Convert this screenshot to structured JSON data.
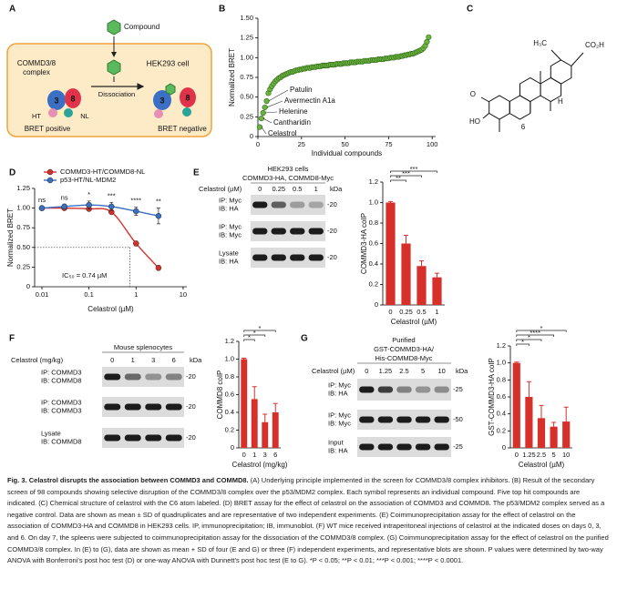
{
  "figure": {
    "panel_letters": [
      "A",
      "B",
      "C",
      "D",
      "E",
      "F",
      "G"
    ],
    "panel_a": {
      "compound": "Compound",
      "complex": [
        "COMMD3/8",
        "complex"
      ],
      "cell": "HEK293 cell",
      "dissociation": "Dissociation",
      "subunits": [
        "3",
        "8"
      ],
      "tags": [
        "HT",
        "NL"
      ],
      "left_result": "BRET positive",
      "right_result": "BRET negative"
    },
    "panel_c": {
      "labels": [
        "H₃C",
        "CO₂H",
        "H",
        "O",
        "HO",
        "6"
      ]
    },
    "blots": [
      {
        "header": [
          "HEK293 cells",
          "COMMD3-HA, COMMD8-Myc"
        ],
        "treatment": "Celastrol (µM)",
        "lanes": [
          "0",
          "0.25",
          "0.5",
          "1"
        ],
        "unit": "kDa",
        "rows": [
          {
            "label": [
              "IP: Myc",
              "IB: HA"
            ],
            "marker": "-20"
          },
          {
            "label": [
              "IP: Myc",
              "IB: Myc"
            ],
            "marker": "-20"
          },
          {
            "label": [
              "Lysate",
              "IB: HA"
            ],
            "marker": "-20"
          }
        ]
      },
      {
        "header": [
          "Mouse splenocytes"
        ],
        "treatment": "Celastrol (mg/kg)",
        "lanes": [
          "0",
          "1",
          "3",
          "6"
        ],
        "unit": "kDa",
        "rows": [
          {
            "label": [
              "IP: COMMD3",
              "IB: COMMD8"
            ],
            "marker": "-20"
          },
          {
            "label": [
              "IP: COMMD3",
              "IB: COMMD3"
            ],
            "marker": "-20"
          },
          {
            "label": [
              "Lysate",
              "IB: COMMD8"
            ],
            "marker": "-20"
          }
        ]
      },
      {
        "header": [
          "Purified",
          "GST-COMMD3-HA/",
          "His-COMMD8-Myc"
        ],
        "treatment": "Celastrol (µM)",
        "lanes": [
          "0",
          "1.25",
          "2.5",
          "5",
          "10"
        ],
        "unit": "kDa",
        "rows": [
          {
            "label": [
              "IP: Myc",
              "IB: HA"
            ],
            "marker": "-25"
          },
          {
            "label": [
              "IP: Myc",
              "IB: Myc"
            ],
            "marker": "-50"
          },
          {
            "label": [
              "Input",
              "IB: HA"
            ],
            "marker": "-25"
          }
        ]
      }
    ]
  },
  "chart_data": [
    {
      "type": "scatter",
      "x_label": "Individual compounds",
      "y_label": "Normalized BRET",
      "color": "#6db33f",
      "x": [
        1,
        2,
        3,
        4,
        5,
        6,
        7,
        8,
        9,
        10,
        11,
        12,
        13,
        14,
        15,
        16,
        17,
        18,
        19,
        20,
        21,
        22,
        23,
        24,
        25,
        26,
        27,
        28,
        29,
        30,
        31,
        32,
        33,
        34,
        35,
        36,
        37,
        38,
        39,
        40,
        41,
        42,
        43,
        44,
        45,
        46,
        47,
        48,
        49,
        50,
        51,
        52,
        53,
        54,
        55,
        56,
        57,
        58,
        59,
        60,
        61,
        62,
        63,
        64,
        65,
        66,
        67,
        68,
        69,
        70,
        71,
        72,
        73,
        74,
        75,
        76,
        77,
        78,
        79,
        80,
        81,
        82,
        83,
        84,
        85,
        86,
        87,
        88,
        89,
        90,
        91,
        92,
        93,
        94,
        95,
        96,
        97,
        98
      ],
      "values": [
        0.12,
        0.23,
        0.3,
        0.37,
        0.45,
        0.55,
        0.6,
        0.64,
        0.67,
        0.7,
        0.72,
        0.74,
        0.75,
        0.77,
        0.78,
        0.79,
        0.8,
        0.81,
        0.82,
        0.82,
        0.83,
        0.84,
        0.84,
        0.85,
        0.85,
        0.86,
        0.86,
        0.87,
        0.87,
        0.87,
        0.88,
        0.88,
        0.88,
        0.89,
        0.89,
        0.89,
        0.9,
        0.9,
        0.9,
        0.9,
        0.91,
        0.91,
        0.91,
        0.91,
        0.92,
        0.92,
        0.92,
        0.92,
        0.93,
        0.93,
        0.93,
        0.93,
        0.94,
        0.94,
        0.94,
        0.94,
        0.95,
        0.95,
        0.95,
        0.95,
        0.96,
        0.96,
        0.96,
        0.96,
        0.97,
        0.97,
        0.97,
        0.97,
        0.98,
        0.98,
        0.98,
        0.98,
        0.99,
        0.99,
        0.99,
        1.0,
        1.0,
        1.0,
        1.01,
        1.01,
        1.01,
        1.02,
        1.02,
        1.03,
        1.03,
        1.04,
        1.04,
        1.05,
        1.05,
        1.06,
        1.07,
        1.08,
        1.09,
        1.1,
        1.12,
        1.15,
        1.2,
        1.26
      ],
      "annotations": [
        "Patulin",
        "Avermectin A1a",
        "Helenine",
        "Cantharidin",
        "Celastrol"
      ],
      "xlim": [
        0,
        102
      ],
      "xticks": [
        0,
        25,
        50,
        75,
        100
      ],
      "ylim": [
        0,
        1.5
      ],
      "yticks": [
        0,
        0.25,
        {
          "value": 0.5,
          "label": "0.50"
        },
        0.75,
        {
          "value": 1,
          "label": "1.00"
        },
        1.25,
        {
          "value": 1.5,
          "label": "1.50"
        }
      ]
    },
    {
      "type": "line",
      "x_label": "Celastrol (µM)",
      "y_label": "Normalized BRET",
      "log_x": true,
      "x": [
        0.01,
        0.03,
        0.1,
        0.3,
        1,
        3
      ],
      "series": [
        {
          "name": "COMMD3-HT/COMMD8-NL",
          "color": "#d7302b",
          "values": [
            1.0,
            1.0,
            0.99,
            0.95,
            0.55,
            0.24
          ],
          "errors": [
            0.01,
            0.01,
            0.02,
            0.02,
            0.03,
            0.03
          ]
        },
        {
          "name": "p53-HT/NL-MDM2",
          "color": "#3b6fc0",
          "values": [
            1.0,
            1.02,
            1.04,
            1.02,
            0.96,
            0.9
          ],
          "errors": [
            0.02,
            0.03,
            0.05,
            0.05,
            0.05,
            0.1
          ]
        }
      ],
      "significance": [
        "ns",
        "ns",
        "*",
        "***",
        "****",
        "**"
      ],
      "ic50": {
        "value": 0.74,
        "label": "IC₅₀ = 0.74 µM"
      },
      "ic50_level": 0.5,
      "xlim": [
        0.007,
        12
      ],
      "xticks": [
        0.01,
        0.1,
        1,
        10
      ],
      "ylim": [
        0,
        1.25
      ],
      "yticks": [
        0,
        0.25,
        {
          "value": 0.5,
          "label": "0.50"
        },
        0.75,
        {
          "value": 1,
          "label": "1.00"
        },
        1.25
      ]
    },
    {
      "type": "bar",
      "x_label": "Celastrol (µM)",
      "y_label": "COMMD3-HA coIP",
      "color": "#d7302b",
      "categories": [
        "0",
        "0.25",
        "0.5",
        "1"
      ],
      "values": [
        1.0,
        0.6,
        0.38,
        0.27
      ],
      "errors": [
        0.01,
        0.08,
        0.05,
        0.04
      ],
      "significance": [
        null,
        "**",
        "***",
        "***"
      ],
      "ylim": [
        0,
        1.2
      ],
      "yticks": [
        0,
        0.2,
        0.4,
        0.6,
        0.8,
        {
          "value": 1,
          "label": "1.0"
        },
        1.2
      ]
    },
    {
      "type": "bar",
      "x_label": "Celastrol (mg/kg)",
      "y_label": "COMMD8 coIP",
      "color": "#d7302b",
      "categories": [
        "0",
        "1",
        "3",
        "6"
      ],
      "values": [
        1.0,
        0.55,
        0.29,
        0.4
      ],
      "errors": [
        0.01,
        0.14,
        0.09,
        0.1
      ],
      "significance": [
        null,
        "*",
        "*",
        "*"
      ],
      "ylim": [
        0,
        1.2
      ],
      "yticks": [
        0,
        0.2,
        0.4,
        0.6,
        0.8,
        {
          "value": 1,
          "label": "1.0"
        },
        1.2
      ]
    },
    {
      "type": "bar",
      "x_label": "Celastrol (µM)",
      "y_label": "GST-COMMD3-HA coIP",
      "color": "#d7302b",
      "categories": [
        "0",
        "1.25",
        "2.5",
        "5",
        "10"
      ],
      "values": [
        1.0,
        0.6,
        0.35,
        0.25,
        0.31
      ],
      "errors": [
        0.01,
        0.18,
        0.15,
        0.05,
        0.17
      ],
      "significance": [
        null,
        "*",
        "*",
        "****",
        "*"
      ],
      "ylim": [
        0,
        1.2
      ],
      "yticks": [
        0,
        0.2,
        0.4,
        0.6,
        0.8,
        {
          "value": 1,
          "label": "1.0"
        },
        1.2
      ]
    }
  ],
  "caption": {
    "title": "Fig. 3. Celastrol disrupts the association between COMMD3 and COMMD8.",
    "body": "(A) Underlying principle implemented in the screen for COMMD3/8 complex inhibitors. (B) Result of the secondary screen of 98 compounds showing selective disruption of the COMMD3/8 complex over the p53/MDM2 complex. Each symbol represents an individual compound. Five top hit compounds are indicated. (C) Chemical structure of celastrol with the C6 atom labeled. (D) BRET assay for the effect of celastrol on the association of COMMD3 and COMMD8. The p53/MDM2 complex served as a negative control. Data are shown as mean ± SD of quadruplicates and are representative of two independent experiments. (E) Coimmunoprecipitation assay for the effect of celastrol on the association of COMMD3-HA and COMMD8 in HEK293 cells. IP, immunoprecipitation; IB, immunoblot. (F) WT mice received intraperitoneal injections of celastrol at the indicated doses on days 0, 3, and 6. On day 7, the spleens were subjected to coimmunoprecipitation assay for the dissociation of the COMMD3/8 complex. (G) Coimmunoprecipitation assay for the effect of celastrol on the purified COMMD3/8 complex. In (E) to (G), data are shown as mean + SD of four (E and G) or three (F) independent experiments, and representative blots are shown. P values were determined by two-way ANOVA with Bonferroni's post hoc test (D) or one-way ANOVA with Dunnett's post hoc test (E to G). *P < 0.05; **P < 0.01; ***P < 0.001; ****P < 0.0001."
  }
}
